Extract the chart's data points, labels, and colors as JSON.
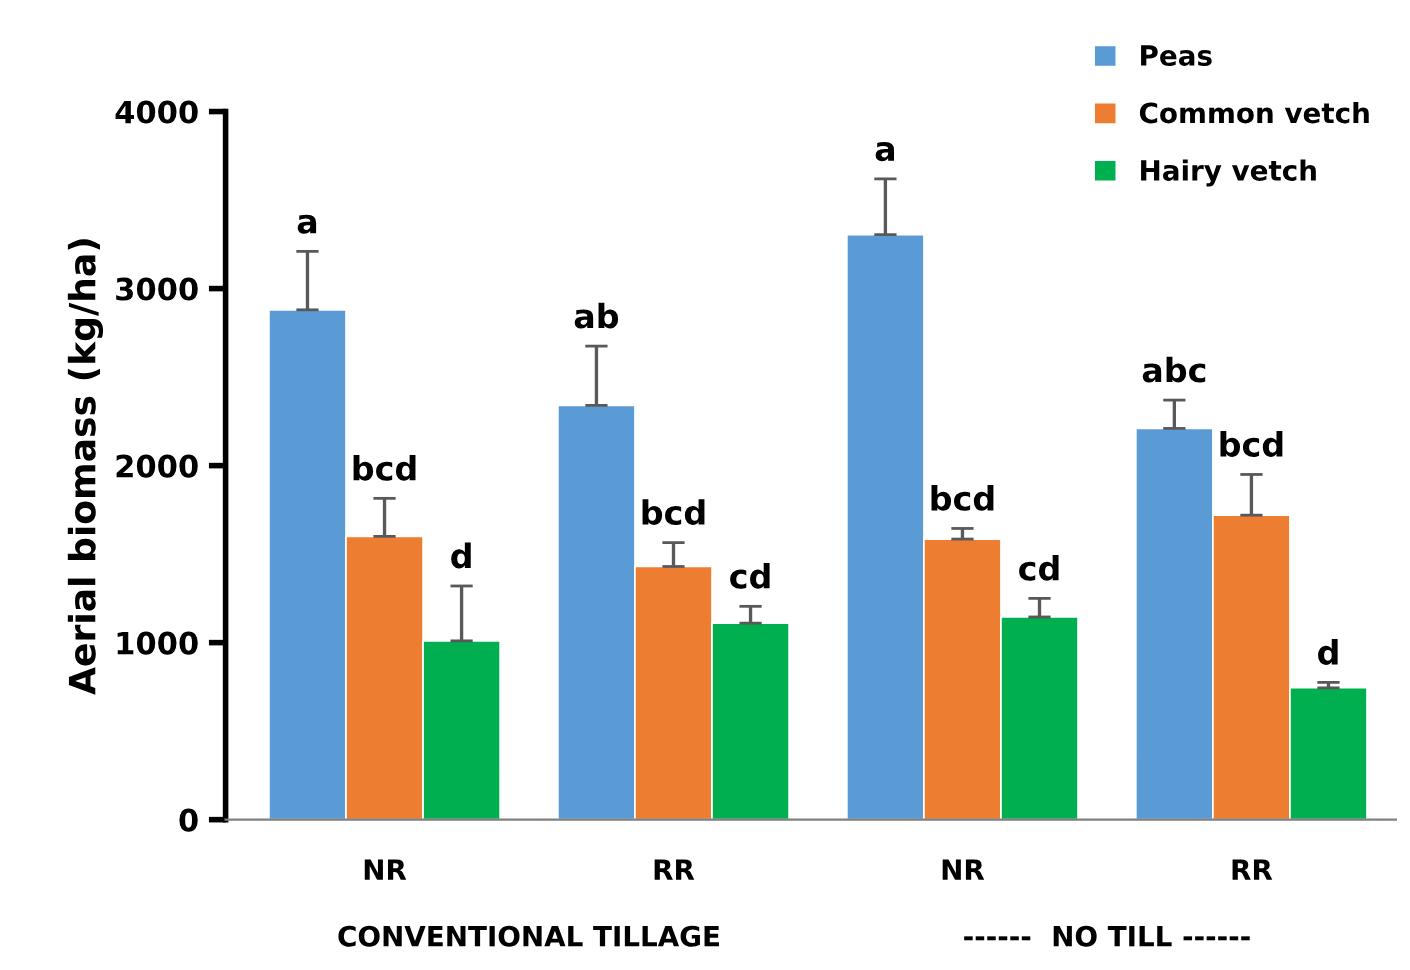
{
  "chart_data": {
    "type": "bar",
    "ylabel": "Aerial biomass (kg/ha)",
    "categories": [
      "NR",
      "RR",
      "NR",
      "RR"
    ],
    "series": [
      {
        "name": "Peas",
        "color": "#5b9bd5",
        "values": [
          2880,
          2340,
          3305,
          2210
        ],
        "errors": [
          [
            2880,
            3210
          ],
          [
            2340,
            2675
          ],
          [
            3305,
            3620
          ],
          [
            2210,
            2370
          ]
        ],
        "value_labels": [
          "a",
          "ab",
          "a",
          "abc"
        ]
      },
      {
        "name": "Common vetch",
        "color": "#ed7d31",
        "values": [
          1600,
          1430,
          1585,
          1720
        ],
        "errors": [
          [
            1600,
            1815
          ],
          [
            1430,
            1565
          ],
          [
            1585,
            1645
          ],
          [
            1720,
            1950
          ]
        ],
        "value_labels": [
          "bcd",
          "bcd",
          "bcd",
          "bcd"
        ]
      },
      {
        "name": "Hairy vetch",
        "color": "#00b050",
        "values": [
          1010,
          1110,
          1145,
          745
        ],
        "errors": [
          [
            1010,
            1320
          ],
          [
            1110,
            1205
          ],
          [
            1145,
            1250
          ],
          [
            745,
            775
          ]
        ],
        "value_labels": [
          "d",
          "cd",
          "cd",
          "d"
        ]
      }
    ],
    "ylim": [
      0,
      4000
    ],
    "yticks": [
      0,
      1000,
      2000,
      3000,
      4000
    ],
    "annotations": [
      "CONVENTIONAL TILLAGE",
      "------  NO TILL ------"
    ],
    "grid": false,
    "legend": "top right"
  }
}
